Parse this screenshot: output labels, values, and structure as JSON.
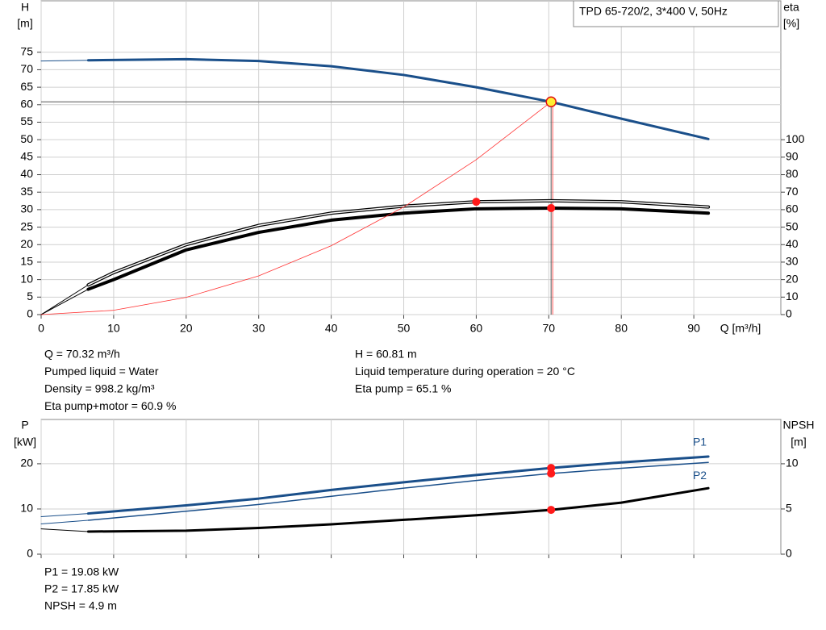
{
  "chart_data": [
    {
      "type": "line",
      "y_label": "H",
      "y_unit": "[m]",
      "y2_label": "eta",
      "y2_unit": "[%]",
      "x_label": "Q [m³/h]",
      "legend_box": "TPD 65-720/2, 3*400 V, 50Hz",
      "xlim": [
        0,
        102
      ],
      "xticks": [
        0,
        10,
        20,
        30,
        40,
        50,
        60,
        70,
        80,
        90
      ],
      "ylim": [
        0,
        89.7
      ],
      "yticks": [
        0,
        5,
        10,
        15,
        20,
        25,
        30,
        35,
        40,
        45,
        50,
        55,
        60,
        65,
        70,
        75
      ],
      "y2lim": [
        0,
        179.4
      ],
      "y2ticks": [
        0,
        10,
        20,
        30,
        40,
        50,
        60,
        70,
        80,
        90,
        100
      ],
      "grid": true,
      "operating_point": {
        "x": 70.32,
        "y": 60.81
      },
      "series": [
        {
          "color": "#1a4f8a",
          "width": 3,
          "thin_start": true,
          "x": [
            0,
            6.5,
            20,
            30,
            40,
            50,
            60,
            70.32,
            80,
            92
          ],
          "values": [
            72.5,
            72.7,
            73,
            72.5,
            71,
            68.5,
            65,
            60.81,
            56,
            50.2
          ]
        },
        {
          "color": "#000000",
          "width": 4,
          "outline": true,
          "thin_start": true,
          "axis": "y2",
          "marker_index": 7,
          "x": [
            0,
            6.5,
            10,
            20,
            30,
            40,
            50,
            60,
            70.32,
            80,
            92
          ],
          "values": [
            0,
            17,
            24,
            40,
            51,
            58,
            62,
            64.5,
            65.1,
            64.5,
            61.5
          ]
        },
        {
          "color": "#000000",
          "width": 4,
          "thin_start": true,
          "axis": "y2",
          "marker_index": 8,
          "x": [
            0,
            6.5,
            10,
            20,
            30,
            40,
            50,
            60,
            70.32,
            80,
            92
          ],
          "values": [
            0,
            14.5,
            20,
            37,
            47,
            54,
            58,
            60.5,
            60.9,
            60.5,
            58
          ]
        },
        {
          "color": "#ff3333",
          "width": 0.8,
          "x": [
            0,
            10,
            20,
            30,
            40,
            50,
            60,
            70.32
          ],
          "values": [
            0,
            1.23,
            4.92,
            11.07,
            19.68,
            30.75,
            44.28,
            60.81
          ]
        }
      ],
      "info_left": [
        "Q = 70.32 m³/h",
        "Pumped liquid = Water",
        "Density = 998.2 kg/m³",
        "Eta pump+motor = 60.9 %"
      ],
      "info_right": [
        "H = 60.81 m",
        "Liquid temperature during operation = 20 °C",
        "Eta pump = 65.1 %"
      ]
    },
    {
      "type": "line",
      "y_label": "P",
      "y_unit": "[kW]",
      "y2_label": "NPSH",
      "y2_unit": "[m]",
      "xlim": [
        0,
        102
      ],
      "xticks": [
        0,
        10,
        20,
        30,
        40,
        50,
        60,
        70,
        80,
        90
      ],
      "ylim": [
        0,
        29.8
      ],
      "yticks": [
        0,
        10,
        20
      ],
      "y2lim": [
        0,
        14.9
      ],
      "y2ticks": [
        0,
        5,
        10
      ],
      "grid": true,
      "series": [
        {
          "name": "P1",
          "color": "#1a4f8a",
          "width": 3,
          "thin_start": true,
          "marker_index": 7,
          "x": [
            0,
            6.5,
            20,
            30,
            40,
            50,
            60,
            70.32,
            80,
            92
          ],
          "values": [
            8.3,
            9,
            10.8,
            12.3,
            14.2,
            15.9,
            17.5,
            19.08,
            20.3,
            21.6
          ]
        },
        {
          "name": "P2",
          "color": "#1a4f8a",
          "width": 1.5,
          "thin_start": true,
          "marker_index": 7,
          "x": [
            0,
            6.5,
            20,
            30,
            40,
            50,
            60,
            70.32,
            80,
            92
          ],
          "values": [
            6.7,
            7.5,
            9.5,
            11,
            12.8,
            14.6,
            16.3,
            17.85,
            19,
            20.3
          ]
        },
        {
          "color": "#000000",
          "width": 3,
          "thin_start": true,
          "axis": "y2",
          "marker_index": 7,
          "x": [
            0,
            6.5,
            20,
            30,
            40,
            50,
            60,
            70.32,
            80,
            92
          ],
          "values": [
            2.8,
            2.5,
            2.6,
            2.9,
            3.3,
            3.8,
            4.3,
            4.9,
            5.7,
            7.3
          ]
        }
      ],
      "info_left": [
        "P1 = 19.08 kW",
        "P2 = 17.85 kW",
        "NPSH = 4.9 m"
      ]
    }
  ]
}
